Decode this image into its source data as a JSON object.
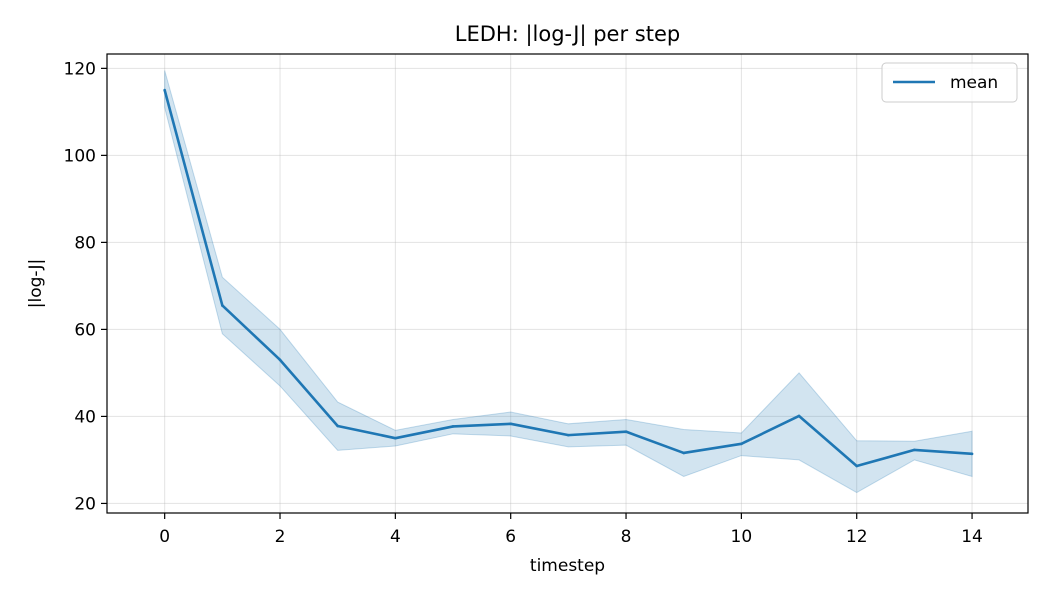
{
  "chart_data": {
    "type": "line",
    "title": "LEDH: |log-J| per step",
    "xlabel": "timestep",
    "ylabel": "|log-J|",
    "x": [
      0,
      1,
      2,
      3,
      4,
      5,
      6,
      7,
      8,
      9,
      10,
      11,
      12,
      13,
      14
    ],
    "series": [
      {
        "name": "mean",
        "values": [
          115,
          65.5,
          53,
          37.8,
          35,
          37.7,
          38.3,
          35.7,
          36.5,
          31.6,
          33.7,
          40.1,
          28.6,
          32.3,
          31.4
        ],
        "band_upper": [
          119.5,
          72,
          60,
          43.3,
          36.8,
          39.3,
          41,
          38.3,
          39.3,
          37,
          36.2,
          50,
          34.4,
          34.3,
          36.6
        ],
        "band_lower": [
          111,
          59,
          47,
          32.2,
          33.2,
          36,
          35.5,
          33,
          33.4,
          26.2,
          31,
          30,
          22.5,
          30,
          26.2
        ],
        "color": "#1f77b4"
      }
    ],
    "xlim": [
      -1,
      14.97
    ],
    "ylim": [
      17.8,
      123.3
    ],
    "xticks": [
      0,
      2,
      4,
      6,
      8,
      10,
      12,
      14
    ],
    "yticks": [
      20,
      40,
      60,
      80,
      100,
      120
    ],
    "grid": true,
    "legend_position": "top-right"
  }
}
